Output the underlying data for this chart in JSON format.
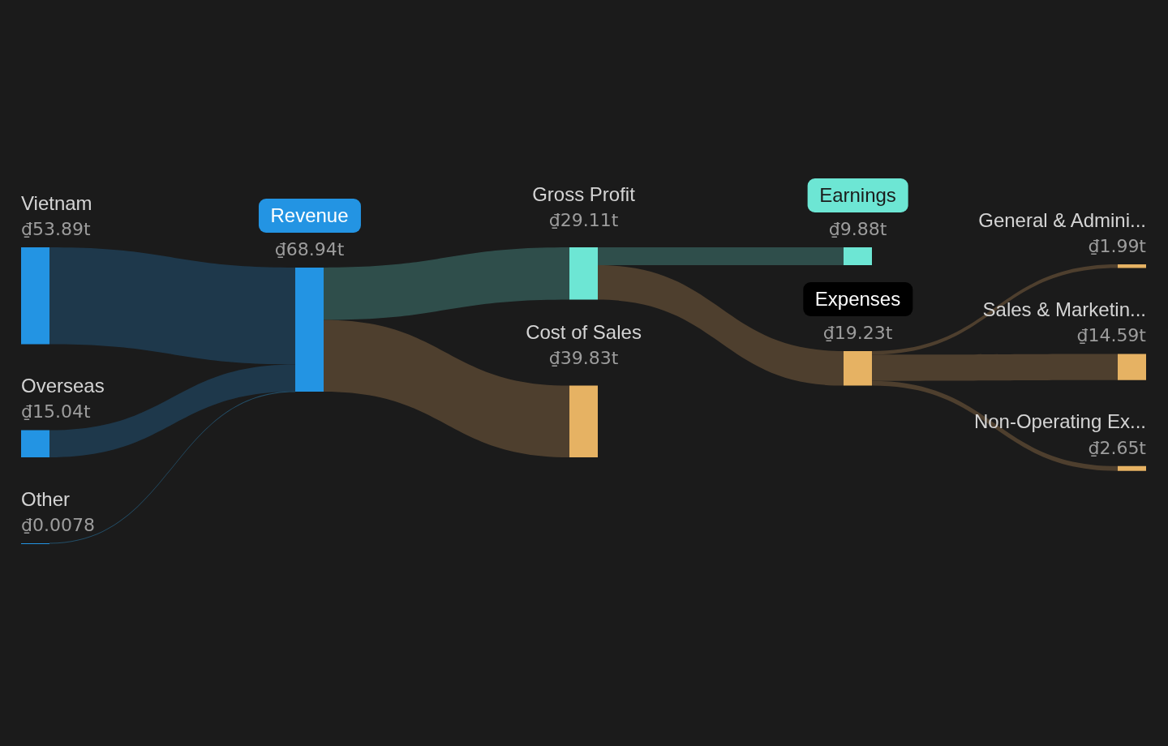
{
  "chart_data": {
    "type": "other",
    "categories": [
      "Vietnam",
      "Overseas",
      "Other",
      "Revenue",
      "Gross Profit",
      "Cost of Sales",
      "Earnings",
      "Expenses",
      "General & Admini...",
      "Sales & Marketin...",
      "Non-Operating Ex..."
    ],
    "values": [
      53.89,
      15.04,
      0.0078,
      68.94,
      29.11,
      39.83,
      9.88,
      19.23,
      1.99,
      14.59,
      2.65
    ],
    "value_labels": [
      "₫53.89t",
      "₫15.04t",
      "₫0.0078",
      "₫68.94t",
      "₫29.11t",
      "₫39.83t",
      "₫9.88t",
      "₫19.23t",
      "₫1.99t",
      "₫14.59t",
      "₫2.65t"
    ],
    "colors": [
      "#2394e3",
      "#2394e3",
      "#2394e3",
      "#2394e3",
      "#6de6d4",
      "#e6b263",
      "#6de6d4",
      "#e6b263",
      "#e6b263",
      "#e6b263",
      "#e6b263"
    ],
    "series": [
      {
        "x": [
          "Vietnam",
          "Revenue"
        ],
        "values": [
          null,
          null
        ],
        "color": "#1e384b"
      },
      {
        "x": [
          "Overseas",
          "Revenue"
        ],
        "values": [
          null,
          null
        ],
        "color": "#1e384b"
      },
      {
        "x": [
          "Other",
          "Revenue"
        ],
        "values": [
          null,
          null
        ],
        "color": "#24506a"
      },
      {
        "x": [
          "Revenue",
          "Gross Profit"
        ],
        "values": [
          null,
          null
        ],
        "color": "#2f4e4b"
      },
      {
        "x": [
          "Revenue",
          "Cost of Sales"
        ],
        "values": [
          null,
          null
        ],
        "color": "#4e3f2e"
      },
      {
        "x": [
          "Gross Profit",
          "Earnings"
        ],
        "values": [
          null,
          null
        ],
        "color": "#2f4e4b"
      },
      {
        "x": [
          "Gross Profit",
          "Expenses"
        ],
        "values": [
          null,
          null
        ],
        "color": "#4e3f2e"
      },
      {
        "x": [
          "Expenses",
          "General & Admini..."
        ],
        "values": [
          null,
          null
        ],
        "color": "#4e3f2e"
      },
      {
        "x": [
          "Expenses",
          "Sales & Marketin..."
        ],
        "values": [
          null,
          null
        ],
        "color": "#4e3f2e"
      },
      {
        "x": [
          "Expenses",
          "Non-Operating Ex..."
        ],
        "values": [
          null,
          null
        ],
        "color": "#4e3f2e"
      }
    ]
  }
}
